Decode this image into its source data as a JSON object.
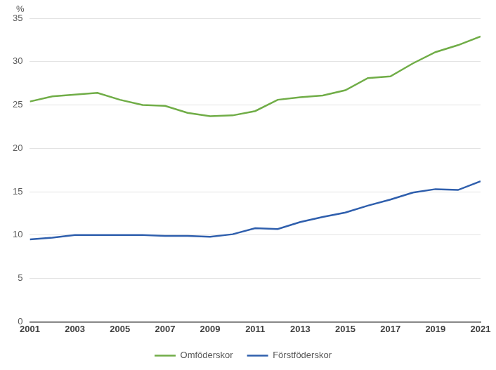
{
  "chart_data": {
    "type": "line",
    "ylabel": "%",
    "x": [
      2001,
      2002,
      2003,
      2004,
      2005,
      2006,
      2007,
      2008,
      2009,
      2010,
      2011,
      2012,
      2013,
      2014,
      2015,
      2016,
      2017,
      2018,
      2019,
      2020,
      2021
    ],
    "series": [
      {
        "name": "Omföderskor",
        "color": "#70ad47",
        "values": [
          25.4,
          26.0,
          26.2,
          26.4,
          25.6,
          25.0,
          24.9,
          24.1,
          23.7,
          23.8,
          24.3,
          25.6,
          25.9,
          26.1,
          26.7,
          28.1,
          28.3,
          29.8,
          31.1,
          31.9,
          32.9
        ]
      },
      {
        "name": "Förstföderskor",
        "color": "#2f5fad",
        "values": [
          9.5,
          9.7,
          10.0,
          10.0,
          10.0,
          10.0,
          9.9,
          9.9,
          9.8,
          10.1,
          10.8,
          10.7,
          11.5,
          12.1,
          12.6,
          13.4,
          14.1,
          14.9,
          15.3,
          15.2,
          16.2
        ]
      }
    ],
    "xlim": [
      2001,
      2021
    ],
    "xticks": [
      2001,
      2003,
      2005,
      2007,
      2009,
      2011,
      2013,
      2015,
      2017,
      2019,
      2021
    ],
    "ylim": [
      0,
      35
    ],
    "yticks": [
      0,
      5,
      10,
      15,
      20,
      25,
      30,
      35
    ],
    "grid": true,
    "legend": "bottom"
  }
}
